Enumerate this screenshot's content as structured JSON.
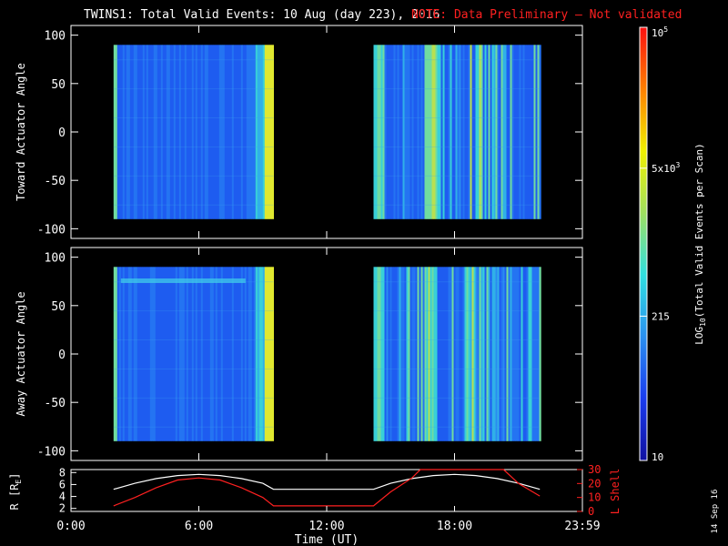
{
  "header": {
    "title": "TWINS1: Total Valid Events: 10 Aug (day 223), 2016",
    "note": "NOTE: Data Preliminary — Not validated",
    "note_color": "#ff2020"
  },
  "stamp": "14 Sep 16",
  "chart_data": [
    {
      "type": "heatmap",
      "ylabel": "Toward Actuator Angle",
      "ylim": [
        -110,
        110
      ],
      "yticks": [
        100,
        50,
        0,
        -50,
        -100
      ],
      "xlim": [
        0,
        24
      ],
      "segments": [
        {
          "start": 2.0,
          "end": 9.5
        },
        {
          "start": 14.2,
          "end": 22.0
        }
      ],
      "angle_range": [
        -90,
        90
      ]
    },
    {
      "type": "heatmap",
      "ylabel": "Away Actuator Angle",
      "ylim": [
        -110,
        110
      ],
      "yticks": [
        100,
        50,
        0,
        -50,
        -100
      ],
      "xlim": [
        0,
        24
      ],
      "segments": [
        {
          "start": 2.0,
          "end": 9.5
        },
        {
          "start": 14.2,
          "end": 22.0
        }
      ],
      "angle_range": [
        -90,
        90
      ]
    },
    {
      "type": "line",
      "xlabel": "Time (UT)",
      "xlim": [
        0,
        24
      ],
      "xtick_labels": [
        "0:00",
        "6:00",
        "12:00",
        "18:00",
        "23:59"
      ],
      "xticks": [
        0,
        6,
        12,
        18,
        24
      ],
      "ylabel_left": "R [R",
      "ylabel_left_sub": "E",
      "ylabel_left_end": "]",
      "ylim_left": [
        1.5,
        8.5
      ],
      "yticks_left": [
        2,
        4,
        6,
        8
      ],
      "ylabel_right": "L Shell",
      "ylim_right": [
        0,
        30
      ],
      "yticks_right": [
        0,
        10,
        20,
        30
      ],
      "series": [
        {
          "axis": "left",
          "color": "#ffffff",
          "x": [
            2.0,
            3.0,
            4.0,
            5.0,
            6.0,
            7.0,
            8.0,
            9.0,
            9.5,
            14.2,
            15.0,
            16.0,
            17.0,
            18.0,
            19.0,
            20.0,
            21.0,
            22.0
          ],
          "y": [
            5.2,
            6.2,
            7.0,
            7.5,
            7.7,
            7.5,
            7.0,
            6.2,
            5.2,
            5.2,
            6.2,
            7.0,
            7.5,
            7.7,
            7.5,
            7.0,
            6.2,
            5.2
          ]
        },
        {
          "axis": "right",
          "color": "#ff2020",
          "x": [
            2.0,
            3.0,
            4.0,
            5.0,
            6.0,
            7.0,
            8.0,
            9.0,
            9.5,
            14.2,
            15.0,
            16.0,
            16.4,
            20.3,
            21.0,
            22.0
          ],
          "y": [
            4.0,
            10.0,
            17.0,
            22.5,
            24.0,
            22.5,
            17.0,
            10.0,
            4.0,
            4.0,
            14.0,
            24.0,
            31.0,
            31.0,
            20.0,
            11.0
          ]
        }
      ]
    }
  ],
  "colorbar": {
    "label": "LOG",
    "label_sub": "10",
    "label_rest": "(Total Valid Events per Scan)",
    "ticks": [
      {
        "value": 10,
        "label": "10"
      },
      {
        "value": 215,
        "label": "215"
      },
      {
        "value": 5000,
        "label": "5x10",
        "sup": "3"
      },
      {
        "value": 100000,
        "label": "10",
        "sup": "5"
      }
    ],
    "min": 10,
    "max": 100000,
    "colors": [
      "#1010a0",
      "#1a3cf0",
      "#2a90f0",
      "#30e0e0",
      "#a0e060",
      "#f0f000",
      "#ff8000",
      "#ff1010"
    ]
  }
}
